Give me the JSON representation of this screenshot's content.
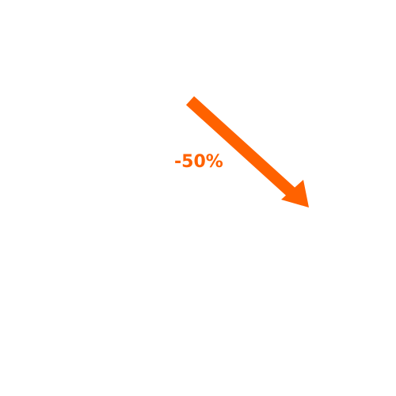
{
  "indicator": {
    "change_label": "-50%",
    "direction": "down-right",
    "icon": "trend-down-arrow-icon",
    "color": "#FF6200"
  }
}
